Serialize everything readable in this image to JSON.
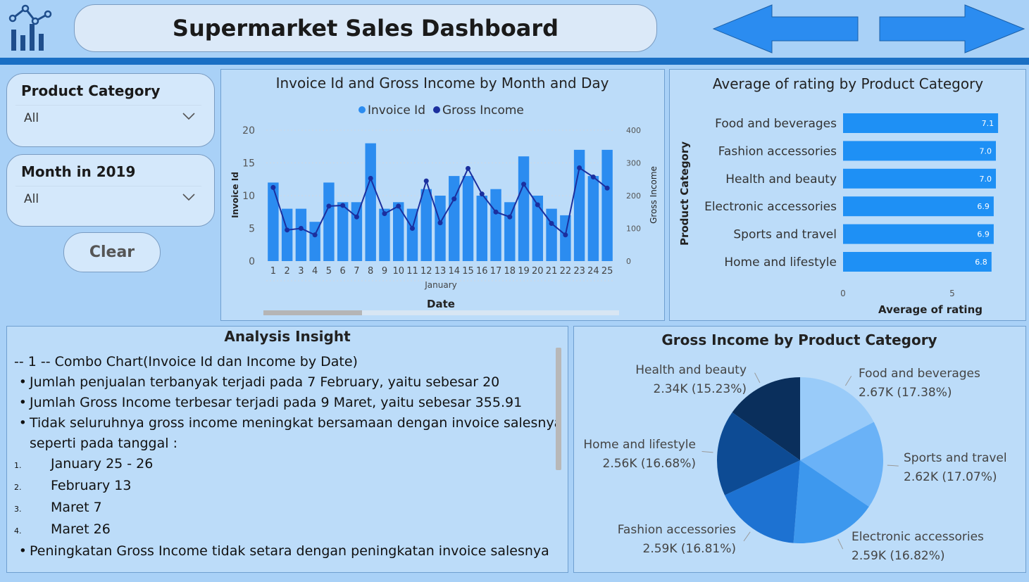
{
  "header": {
    "title": "Supermarket Sales Dashboard",
    "back_icon": "arrow-left-icon",
    "forward_icon": "arrow-right-icon",
    "logo_icon": "chart-logo-icon"
  },
  "slicers": {
    "product_category": {
      "title": "Product Category",
      "value": "All"
    },
    "month": {
      "title": "Month in 2019",
      "value": "All"
    },
    "clear_label": "Clear"
  },
  "combo_chart": {
    "title": "Invoice Id and Gross Income by Month and Day",
    "legend": [
      "Invoice Id",
      "Gross Income"
    ],
    "y_left_label": "Invoice Id",
    "y_right_label": "Gross Income",
    "x_group_label": "January",
    "x_label": "Date",
    "y_left_ticks": [
      "0",
      "5",
      "10",
      "15",
      "20"
    ],
    "y_right_ticks": [
      "0",
      "100",
      "200",
      "300",
      "400"
    ]
  },
  "bar_chart": {
    "title": "Average of rating by Product Category",
    "y_label": "Product Category",
    "x_label": "Average of rating",
    "x_ticks": [
      "0",
      "5"
    ]
  },
  "insight": {
    "title": "Analysis Insight",
    "lines": [
      {
        "kind": "plain",
        "text": "-- 1 -- Combo Chart(Invoice Id dan Income by Date)"
      },
      {
        "kind": "bullet",
        "text": "Jumlah penjualan terbanyak terjadi pada 7 February, yaitu sebesar 20"
      },
      {
        "kind": "bullet",
        "text": "Jumlah Gross Income terbesar terjadi pada 9 Maret, yaitu sebesar 355.91"
      },
      {
        "kind": "bullet",
        "text": "Tidak seluruhnya gross income meningkat bersamaan dengan invoice salesnya"
      },
      {
        "kind": "cont",
        "text": "seperti pada tanggal :"
      },
      {
        "kind": "num",
        "num": "1.",
        "text": "January 25 - 26"
      },
      {
        "kind": "num",
        "num": "2.",
        "text": "February 13"
      },
      {
        "kind": "num",
        "num": "3.",
        "text": "Maret 7"
      },
      {
        "kind": "num",
        "num": "4.",
        "text": "Maret 26"
      },
      {
        "kind": "bullet",
        "text": "Peningkatan Gross Income tidak setara dengan peningkatan invoice salesnya"
      }
    ]
  },
  "pie_chart": {
    "title": "Gross Income by Product Category"
  },
  "colors": {
    "bar": "#2b8cf0",
    "line": "#1b2f9e",
    "hbar": "#1e90f5",
    "pie": [
      "#0a2f5c",
      "#99cbf9",
      "#6ab2f7",
      "#3d98ee",
      "#1d72d2",
      "#0d4b94"
    ]
  },
  "chart_data": [
    {
      "type": "bar",
      "title": "Invoice Id and Gross Income by Month and Day",
      "categories": [
        "1",
        "2",
        "3",
        "4",
        "5",
        "6",
        "7",
        "8",
        "9",
        "10",
        "11",
        "12",
        "13",
        "14",
        "15",
        "16",
        "17",
        "18",
        "19",
        "20",
        "21",
        "22",
        "23",
        "24",
        "25"
      ],
      "series": [
        {
          "name": "Invoice Id",
          "type": "bar",
          "axis": "left",
          "values": [
            12,
            8,
            8,
            6,
            12,
            9,
            9,
            18,
            8,
            9,
            8,
            11,
            10,
            13,
            13,
            10,
            11,
            9,
            16,
            10,
            8,
            7,
            17,
            13,
            17
          ]
        },
        {
          "name": "Gross Income",
          "type": "line",
          "axis": "right",
          "values": [
            225,
            95,
            100,
            80,
            168,
            170,
            135,
            253,
            145,
            168,
            100,
            245,
            117,
            190,
            283,
            205,
            150,
            135,
            235,
            172,
            115,
            80,
            285,
            257,
            223
          ]
        }
      ],
      "xlabel": "Date",
      "ylabel": "Invoice Id",
      "y2label": "Gross Income",
      "ylim": [
        0,
        20
      ],
      "y2lim": [
        0,
        400
      ]
    },
    {
      "type": "bar",
      "orientation": "horizontal",
      "title": "Average of rating by Product Category",
      "categories": [
        "Food and beverages",
        "Fashion accessories",
        "Health and beauty",
        "Electronic accessories",
        "Sports and travel",
        "Home and lifestyle"
      ],
      "values": [
        7.1,
        7.0,
        7.0,
        6.9,
        6.9,
        6.8
      ],
      "labels": [
        "7.1",
        "7.0",
        "7.0",
        "6.9",
        "6.9",
        "6.8"
      ],
      "xlabel": "Average of rating",
      "ylabel": "Product Category",
      "xlim": [
        0,
        7.2
      ]
    },
    {
      "type": "pie",
      "title": "Gross Income by Product Category",
      "slices": [
        {
          "name": "Health and beauty",
          "label": "2.34K (15.23%)",
          "value": 15.23
        },
        {
          "name": "Food and beverages",
          "label": "2.67K (17.38%)",
          "value": 17.38
        },
        {
          "name": "Sports and travel",
          "label": "2.62K (17.07%)",
          "value": 17.07
        },
        {
          "name": "Electronic accessories",
          "label": "2.59K (16.82%)",
          "value": 16.82
        },
        {
          "name": "Fashion accessories",
          "label": "2.59K (16.81%)",
          "value": 16.81
        },
        {
          "name": "Home and lifestyle",
          "label": "2.56K (16.68%)",
          "value": 16.68
        }
      ]
    }
  ]
}
